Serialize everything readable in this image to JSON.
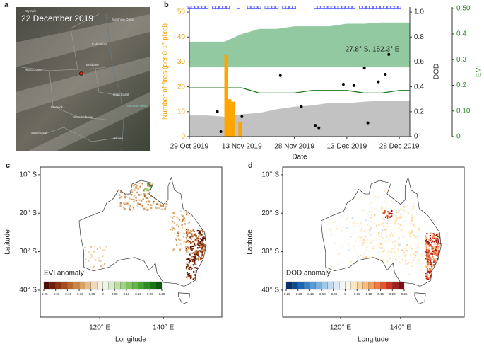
{
  "image_panel": {
    "panel": "a",
    "date": "22 December 2019",
    "places": [
      "Gympie",
      "Sunshine Coast",
      "Caboolture",
      "Toowoomba",
      "Brisbane",
      "Gold Coast",
      "Moreton Island",
      "Warwick",
      "Woodenbong",
      "Stanthorpe",
      "Lismore"
    ]
  },
  "chart_data": [
    {
      "panel": "b",
      "type": "combo",
      "xlabel": "Date",
      "ylabel": "Number of fires (per 0.1° pixel)",
      "y2label": "DOD",
      "y3label": "EVI",
      "annotation": "27.8° S, 152.3° E",
      "xlim": [
        "2019-10-29",
        "2019-12-31"
      ],
      "xticks": [
        {
          "value": "2019-10-29",
          "label": "29 Oct 2019"
        },
        {
          "value": "2019-11-13",
          "label": "13 Nov 2019"
        },
        {
          "value": "2019-11-28",
          "label": "28 Nov 2019"
        },
        {
          "value": "2019-12-13",
          "label": "13 Dec 2019"
        },
        {
          "value": "2019-12-28",
          "label": "28 Dec 2019"
        }
      ],
      "ylim": [
        0,
        52
      ],
      "yticks": [
        0,
        10,
        20,
        30,
        40,
        50
      ],
      "ycolor": "#f5a000",
      "y2lim": [
        0,
        1.04
      ],
      "y2ticks": [
        0,
        0.2,
        0.4,
        0.6,
        0.8,
        {
          "value": 1,
          "label": "1.0"
        }
      ],
      "y3lim": [
        0,
        0.505
      ],
      "y3ticks": [
        0,
        {
          "value": 0.1,
          "label": "0.10"
        },
        0.2,
        0.3,
        0.4,
        {
          "value": 0.5,
          "label": "0.50"
        }
      ],
      "y3color": "#2e8b2e",
      "series": [
        {
          "kind": "band",
          "axis": "y3",
          "color": "#93c9a0",
          "x": [
            "2019-10-29",
            "2019-11-03",
            "2019-11-08",
            "2019-11-13",
            "2019-11-18",
            "2019-11-23",
            "2019-11-28",
            "2019-12-03",
            "2019-12-08",
            "2019-12-13",
            "2019-12-18",
            "2019-12-23",
            "2019-12-28",
            "2019-12-31"
          ],
          "lower": [
            0.27,
            0.27,
            0.27,
            0.27,
            0.27,
            0.27,
            0.27,
            0.27,
            0.27,
            0.27,
            0.27,
            0.27,
            0.27,
            0.27
          ],
          "upper": [
            0.37,
            0.37,
            0.37,
            0.4,
            0.42,
            0.42,
            0.43,
            0.43,
            0.43,
            0.44,
            0.44,
            0.445,
            0.445,
            0.445
          ]
        },
        {
          "kind": "area",
          "axis": "y2",
          "color": "#c2c2c2",
          "x": [
            "2019-10-29",
            "2019-11-03",
            "2019-11-08",
            "2019-11-13",
            "2019-11-18",
            "2019-11-23",
            "2019-11-28",
            "2019-12-03",
            "2019-12-08",
            "2019-12-13",
            "2019-12-18",
            "2019-12-23",
            "2019-12-28",
            "2019-12-31"
          ],
          "values": [
            0.17,
            0.17,
            0.16,
            0.18,
            0.19,
            0.22,
            0.24,
            0.25,
            0.27,
            0.27,
            0.28,
            0.29,
            0.29,
            0.29
          ]
        },
        {
          "kind": "line",
          "axis": "y3",
          "color": "#1a7a1a",
          "x": [
            "2019-10-29",
            "2019-11-03",
            "2019-11-08",
            "2019-11-13",
            "2019-11-18",
            "2019-11-23",
            "2019-11-28",
            "2019-12-03",
            "2019-12-08",
            "2019-12-13",
            "2019-12-18",
            "2019-12-23",
            "2019-12-28",
            "2019-12-31"
          ],
          "values": [
            0.19,
            0.19,
            0.19,
            0.19,
            0.17,
            0.17,
            0.17,
            0.18,
            0.18,
            0.18,
            0.17,
            0.17,
            0.18,
            0.18
          ]
        },
        {
          "kind": "bar",
          "axis": "y",
          "color": "#ffa500",
          "x": [
            "2019-11-08",
            "2019-11-09",
            "2019-11-10",
            "2019-11-12"
          ],
          "values": [
            33,
            15,
            14,
            6
          ]
        },
        {
          "kind": "scatter",
          "axis": "y2",
          "color": "#000000",
          "x": [
            "2019-11-06",
            "2019-11-07",
            "2019-11-13",
            "2019-11-24",
            "2019-11-30",
            "2019-12-04",
            "2019-12-05",
            "2019-12-12",
            "2019-12-15",
            "2019-12-18",
            "2019-12-19",
            "2019-12-22",
            "2019-12-24",
            "2019-12-25"
          ],
          "values": [
            0.2,
            0.04,
            0.16,
            0.49,
            0.24,
            0.09,
            0.07,
            0.42,
            0.41,
            0.55,
            0.11,
            0.44,
            0.5,
            0.66
          ]
        },
        {
          "kind": "square",
          "axis": "y2",
          "color": "#3b3bff",
          "x": [
            "2019-10-29",
            "2019-10-30",
            "2019-10-31",
            "2019-11-01",
            "2019-11-02",
            "2019-11-03",
            "2019-11-05",
            "2019-11-06",
            "2019-11-07",
            "2019-11-08",
            "2019-11-09",
            "2019-11-12",
            "2019-11-15",
            "2019-11-16",
            "2019-11-17",
            "2019-11-18",
            "2019-11-20",
            "2019-11-21",
            "2019-11-22",
            "2019-11-23",
            "2019-11-25",
            "2019-11-26",
            "2019-11-27",
            "2019-11-28",
            "2019-12-04",
            "2019-12-05",
            "2019-12-06",
            "2019-12-07",
            "2019-12-08",
            "2019-12-09",
            "2019-12-10",
            "2019-12-11",
            "2019-12-12",
            "2019-12-13",
            "2019-12-14",
            "2019-12-15",
            "2019-12-17",
            "2019-12-18",
            "2019-12-19",
            "2019-12-20",
            "2019-12-21",
            "2019-12-22",
            "2019-12-23",
            "2019-12-24",
            "2019-12-25",
            "2019-12-26",
            "2019-12-27",
            "2019-12-28"
          ],
          "values": [
            1.036,
            1.036,
            1.036,
            1.036,
            1.036,
            1.036,
            1.036,
            1.036,
            1.036,
            1.036,
            1.036,
            1.036,
            1.036,
            1.036,
            1.036,
            1.036,
            1.036,
            1.036,
            1.036,
            1.036,
            1.036,
            1.036,
            1.036,
            1.036,
            1.036,
            1.036,
            1.036,
            1.036,
            1.036,
            1.036,
            1.036,
            1.036,
            1.036,
            1.036,
            1.036,
            1.036,
            1.036,
            1.036,
            1.036,
            1.036,
            1.036,
            1.036,
            1.036,
            1.036,
            1.036,
            1.036,
            1.036,
            1.036
          ]
        }
      ]
    },
    {
      "panel": "c",
      "type": "map",
      "xlabel": "Longitude",
      "ylabel": "Latitude",
      "xlim": [
        101.3,
        158.4
      ],
      "ylim": [
        -47,
        -8
      ],
      "xticks": [
        {
          "value": 120,
          "label": "120° E"
        },
        {
          "value": 140,
          "label": "140° E"
        }
      ],
      "yticks": [
        {
          "value": -10,
          "label": "10° S"
        },
        {
          "value": -20,
          "label": "20° S"
        },
        {
          "value": -30,
          "label": "30° S"
        },
        {
          "value": -40,
          "label": "40° S"
        }
      ],
      "colorbar": {
        "title": "EVI anomaly",
        "lim": [
          -0.25,
          0.25
        ],
        "ticks": [
          {
            "value": -0.25,
            "label": "–0.25"
          },
          {
            "value": -0.2,
            "label": "–0.20"
          },
          {
            "value": -0.15,
            "label": "–0.15"
          },
          {
            "value": -0.1,
            "label": "–0.10"
          },
          {
            "value": -0.05,
            "label": "–0.05"
          },
          0,
          0.05,
          {
            "value": 0.1,
            "label": "0.10"
          },
          0.15,
          {
            "value": 0.2,
            "label": "0.20"
          },
          0.25
        ],
        "colors": [
          "#4d0f05",
          "#6b1e0a",
          "#8a3412",
          "#a44e1f",
          "#b8692f",
          "#c98646",
          "#d8a266",
          "#e5be8c",
          "#f0d8b6",
          "#faf0e2",
          "#eef7e6",
          "#d6eec5",
          "#bce2a2",
          "#9fd47f",
          "#82c55f",
          "#64b545",
          "#48a232",
          "#2f8c23",
          "#1c7418",
          "#0d5a0e"
        ]
      }
    },
    {
      "panel": "d",
      "type": "map",
      "xlabel": "Longitude",
      "ylabel": "Latitude",
      "xlim": [
        100.7,
        161.2
      ],
      "ylim": [
        -47,
        -8
      ],
      "xticks": [
        {
          "value": 120,
          "label": "120° E"
        },
        {
          "value": 140,
          "label": "140° E"
        }
      ],
      "yticks": [
        {
          "value": -10,
          "label": "10° S"
        },
        {
          "value": -20,
          "label": "20° S"
        },
        {
          "value": -30,
          "label": "30° S"
        },
        {
          "value": -40,
          "label": "40° S"
        }
      ],
      "colorbar": {
        "title": "DOD anomaly",
        "lim": [
          -0.25,
          0.25
        ],
        "ticks": [
          {
            "value": -0.25,
            "label": "–0.25"
          },
          {
            "value": -0.2,
            "label": "–0.20"
          },
          {
            "value": -0.15,
            "label": "–0.15"
          },
          {
            "value": -0.1,
            "label": "–0.10"
          },
          {
            "value": -0.05,
            "label": "–0.05"
          },
          0,
          0.05,
          {
            "value": 0.1,
            "label": "0.10"
          },
          0.15,
          {
            "value": 0.2,
            "label": "0.20"
          },
          0.25
        ],
        "colors": [
          "#08306b",
          "#0d4a94",
          "#1f66b0",
          "#3a82c4",
          "#5a9bd3",
          "#7db2de",
          "#a0c8e7",
          "#c0dbef",
          "#dceaf6",
          "#f2f7fb",
          "#fff7e6",
          "#fee8bf",
          "#fdd49a",
          "#fdbb75",
          "#fc9b55",
          "#f7773c",
          "#e8552c",
          "#cf3420",
          "#ad1a18",
          "#7f0c12"
        ]
      }
    }
  ]
}
